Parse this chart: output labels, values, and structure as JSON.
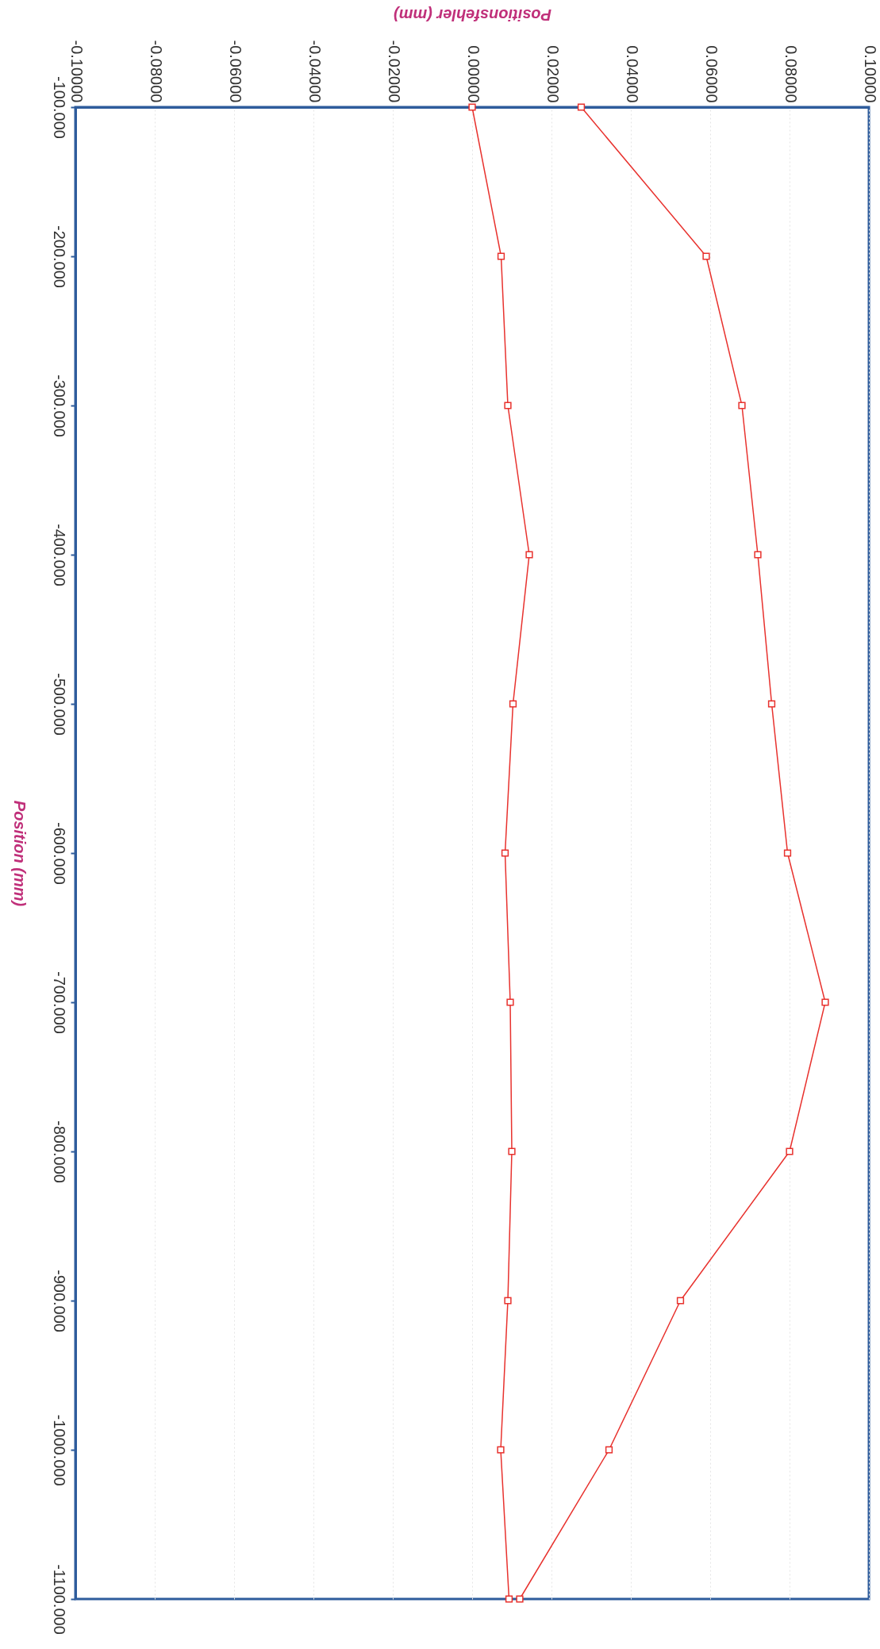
{
  "chart_data": {
    "type": "line",
    "xlabel": "Positionsfehler (mm)",
    "ylabel": "Position (mm)",
    "series": [
      {
        "color": "#e8322e",
        "x": [
          0.0275,
          0.059,
          0.068,
          0.072,
          0.0755,
          0.0795,
          0.089,
          0.08,
          0.0525,
          0.0345,
          0.012
        ],
        "values": [
          -100,
          -200,
          -300,
          -400,
          -500,
          -600,
          -700,
          -800,
          -900,
          -1000,
          -1100
        ]
      },
      {
        "color": "#e8322e",
        "x": [
          0.0,
          0.0073,
          0.009,
          0.0144,
          0.0103,
          0.0083,
          0.0096,
          0.01,
          0.009,
          0.0072,
          0.0093
        ],
        "values": [
          -100,
          -200,
          -300,
          -400,
          -500,
          -600,
          -700,
          -800,
          -900,
          -1000,
          -1100
        ]
      }
    ],
    "ylim": [
      -1100,
      -100
    ],
    "yticks": [
      {
        "value": -100,
        "label": "-100.000"
      },
      {
        "value": -200,
        "label": "-200.000"
      },
      {
        "value": -300,
        "label": "-300.000"
      },
      {
        "value": -400,
        "label": "-400.000"
      },
      {
        "value": -500,
        "label": "-500.000"
      },
      {
        "value": -600,
        "label": "-600.000"
      },
      {
        "value": -700,
        "label": "-700.000"
      },
      {
        "value": -800,
        "label": "-800.000"
      },
      {
        "value": -900,
        "label": "-900.000"
      },
      {
        "value": -1000,
        "label": "-1000.000"
      },
      {
        "value": -1100,
        "label": "-1100.000"
      }
    ],
    "xlim": [
      -0.1,
      0.1
    ],
    "xticks": [
      {
        "value": -0.1,
        "label": "-0.10000"
      },
      {
        "value": -0.08,
        "label": "-0.08000"
      },
      {
        "value": -0.06,
        "label": "-0.06000"
      },
      {
        "value": -0.04,
        "label": "-0.04000"
      },
      {
        "value": -0.02,
        "label": "-0.02000"
      },
      {
        "value": 0,
        "label": "0.00000"
      },
      {
        "value": 0.02,
        "label": "0.02000"
      },
      {
        "value": 0.04,
        "label": "0.04000"
      },
      {
        "value": 0.06,
        "label": "0.06000"
      },
      {
        "value": 0.08,
        "label": "0.08000"
      },
      {
        "value": 0.1,
        "label": "0.10000"
      }
    ],
    "grid": "x",
    "marker": "square",
    "line_style": "solid"
  }
}
